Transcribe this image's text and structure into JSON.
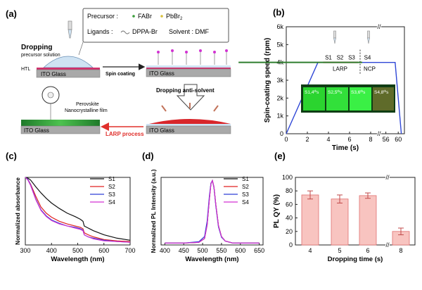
{
  "panel_a": {
    "label": "(a)",
    "legend": {
      "precursor": "Precursor :",
      "fabr": "FABr",
      "pbbr2_base": "PbBr",
      "pbbr2_sub": "2",
      "ligands": "Ligands :",
      "dppa": "DPPA-Br",
      "solvent": "Solvent : DMF"
    },
    "dropping_line1": "Dropping",
    "dropping_line2": "precursor solution",
    "htl": "HTL",
    "ito1": "ITO Glass",
    "ito2": "ITO Glass",
    "ito3": "ITO Glass",
    "ito4": "ITO Glass",
    "spin_coating": "Spin coating",
    "dropping_antisolvent": "Dropping anti-solvent",
    "larp_process": "LARP process",
    "film_line1": "Perovskite",
    "film_line2": "Nanocrystalline film",
    "colors": {
      "larp": "#e0302c",
      "film": "#2e9e36",
      "ito": "#a9a9a9",
      "htl": "#d0306c"
    }
  },
  "panel_b": {
    "label": "(b)",
    "inset_labels": [
      "S1,4th s",
      "S2,5th s",
      "S3,6th s",
      "S4,8th s"
    ],
    "inset_label_main": [
      "S1,4",
      "S2,5",
      "S3,6",
      "S4,8"
    ],
    "inset_label_sup": [
      "th",
      "th",
      "th",
      "th"
    ],
    "inset_label_tail": [
      "s",
      "s",
      "s",
      "s"
    ],
    "sample_top": [
      "S1",
      "S2",
      "S3",
      "S4"
    ],
    "larp": "LARP",
    "ncp": "NCP",
    "colors": {
      "line": "#2f47d6",
      "larp": "#e0302c",
      "ncp": "#2f7d2f"
    }
  },
  "panel_c": {
    "label": "(c)"
  },
  "panel_d": {
    "label": "(d)"
  },
  "panel_e": {
    "label": "(e)"
  },
  "chart_data": [
    {
      "type": "line",
      "panel": "(b)",
      "xlabel": "Time (s)",
      "ylabel": "Spin-coating speed (rpm)",
      "x_ticks": [
        "0",
        "2",
        "4",
        "6",
        "8",
        "56",
        "60"
      ],
      "y_ticks": [
        "0",
        "1k",
        "2k",
        "3k",
        "4k",
        "5k",
        "6k"
      ],
      "ylim": [
        0,
        6000
      ],
      "broken_x_axis": true,
      "series": [
        {
          "name": "",
          "x": [
            0,
            3,
            6,
            8,
            56,
            59,
            61
          ],
          "y": [
            0,
            4000,
            4000,
            4000,
            4000,
            4000,
            0
          ]
        }
      ]
    },
    {
      "type": "line",
      "panel": "(c)",
      "xlabel": "Wavelength (nm)",
      "ylabel": "Normalized absorbance",
      "x_ticks": [
        "300",
        "400",
        "500",
        "600",
        "700"
      ],
      "xlim": [
        300,
        700
      ],
      "ylim": [
        0,
        1
      ],
      "legend_position": "top-right",
      "series": [
        {
          "name": "S1",
          "color": "#111111",
          "x": [
            300,
            310,
            320,
            340,
            360,
            380,
            400,
            430,
            460,
            490,
            510,
            520,
            525,
            540,
            560,
            600,
            650,
            700
          ],
          "y": [
            1.0,
            0.99,
            0.96,
            0.86,
            0.77,
            0.69,
            0.62,
            0.54,
            0.47,
            0.42,
            0.38,
            0.35,
            0.28,
            0.25,
            0.21,
            0.15,
            0.1,
            0.07
          ]
        },
        {
          "name": "S2",
          "color": "#e02020",
          "x": [
            300,
            310,
            320,
            340,
            360,
            380,
            400,
            430,
            460,
            490,
            510,
            520,
            525,
            540,
            560,
            600,
            650,
            700
          ],
          "y": [
            1.0,
            0.97,
            0.9,
            0.72,
            0.56,
            0.47,
            0.41,
            0.35,
            0.31,
            0.28,
            0.26,
            0.24,
            0.18,
            0.15,
            0.12,
            0.08,
            0.06,
            0.05
          ]
        },
        {
          "name": "S3",
          "color": "#2f3fd6",
          "x": [
            300,
            310,
            320,
            340,
            360,
            380,
            400,
            430,
            460,
            490,
            510,
            520,
            525,
            540,
            560,
            600,
            650,
            700
          ],
          "y": [
            1.0,
            0.97,
            0.89,
            0.68,
            0.52,
            0.43,
            0.37,
            0.32,
            0.28,
            0.26,
            0.24,
            0.22,
            0.15,
            0.12,
            0.1,
            0.07,
            0.05,
            0.04
          ]
        },
        {
          "name": "S4",
          "color": "#d232d2",
          "x": [
            300,
            310,
            320,
            340,
            360,
            380,
            400,
            430,
            460,
            490,
            510,
            520,
            525,
            540,
            560,
            600,
            650,
            700
          ],
          "y": [
            1.0,
            0.96,
            0.88,
            0.67,
            0.51,
            0.42,
            0.36,
            0.31,
            0.28,
            0.25,
            0.23,
            0.21,
            0.15,
            0.12,
            0.09,
            0.06,
            0.05,
            0.04
          ]
        }
      ]
    },
    {
      "type": "line",
      "panel": "(d)",
      "xlabel": "Wavelength (nm)",
      "ylabel": "Normalized PL Intensity (a.u.)",
      "x_ticks": [
        "400",
        "450",
        "500",
        "550",
        "600",
        "650"
      ],
      "xlim": [
        390,
        660
      ],
      "ylim": [
        0,
        1.05
      ],
      "legend_position": "top-right",
      "series": [
        {
          "name": "S1",
          "color": "#111111",
          "x": [
            400,
            450,
            490,
            505,
            512,
            518,
            522,
            526,
            530,
            535,
            542,
            550,
            560,
            580,
            620,
            650
          ],
          "y": [
            0.03,
            0.03,
            0.04,
            0.1,
            0.32,
            0.72,
            0.95,
            1.0,
            0.9,
            0.62,
            0.3,
            0.13,
            0.06,
            0.03,
            0.03,
            0.03
          ]
        },
        {
          "name": "S2",
          "color": "#e02020",
          "x": [
            400,
            450,
            490,
            505,
            512,
            518,
            522,
            526,
            530,
            535,
            542,
            550,
            560,
            580,
            620,
            650
          ],
          "y": [
            0.03,
            0.03,
            0.04,
            0.1,
            0.31,
            0.71,
            0.95,
            1.0,
            0.9,
            0.62,
            0.3,
            0.13,
            0.06,
            0.03,
            0.03,
            0.03
          ]
        },
        {
          "name": "S3",
          "color": "#2f3fd6",
          "x": [
            400,
            450,
            490,
            505,
            512,
            518,
            522,
            526,
            530,
            535,
            542,
            550,
            560,
            580,
            620,
            650
          ],
          "y": [
            0.03,
            0.03,
            0.05,
            0.13,
            0.37,
            0.76,
            0.96,
            1.0,
            0.89,
            0.6,
            0.28,
            0.12,
            0.06,
            0.03,
            0.03,
            0.03
          ]
        },
        {
          "name": "S4",
          "color": "#d232d2",
          "x": [
            400,
            450,
            490,
            505,
            512,
            518,
            522,
            526,
            530,
            535,
            542,
            550,
            560,
            580,
            620,
            650
          ],
          "y": [
            0.03,
            0.03,
            0.04,
            0.1,
            0.31,
            0.71,
            0.95,
            1.0,
            0.9,
            0.62,
            0.3,
            0.13,
            0.06,
            0.03,
            0.03,
            0.03
          ]
        }
      ]
    },
    {
      "type": "bar",
      "panel": "(e)",
      "xlabel": "Dropping time (s)",
      "ylabel": "PL QY (%)",
      "categories": [
        "4",
        "5",
        "6",
        "8"
      ],
      "values": [
        74,
        68,
        73,
        20
      ],
      "errors": [
        6,
        6,
        4,
        5
      ],
      "y_ticks": [
        "0",
        "20",
        "40",
        "60",
        "80",
        "100"
      ],
      "ylim": [
        0,
        100
      ],
      "broken_x_axis": true,
      "bar_color": "#f8c4c0",
      "edge_color": "#e07070"
    }
  ]
}
